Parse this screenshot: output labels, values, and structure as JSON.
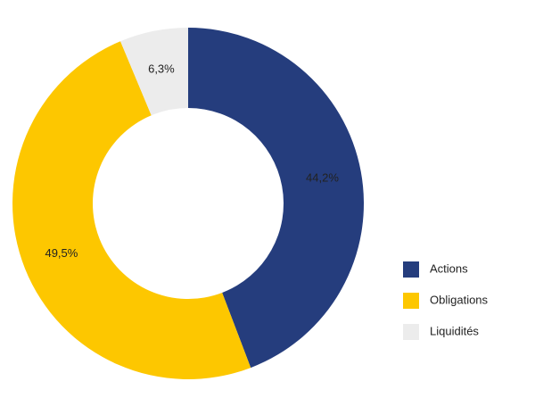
{
  "chart_data": {
    "type": "donut",
    "categories": [
      "Actions",
      "Obligations",
      "Liquidités"
    ],
    "values": [
      44.2,
      49.5,
      6.3
    ],
    "value_labels": [
      "44,2%",
      "49,5%",
      "6,3%"
    ],
    "colors": [
      "#253d7d",
      "#fdc700",
      "#ececec"
    ],
    "legend": "right"
  }
}
